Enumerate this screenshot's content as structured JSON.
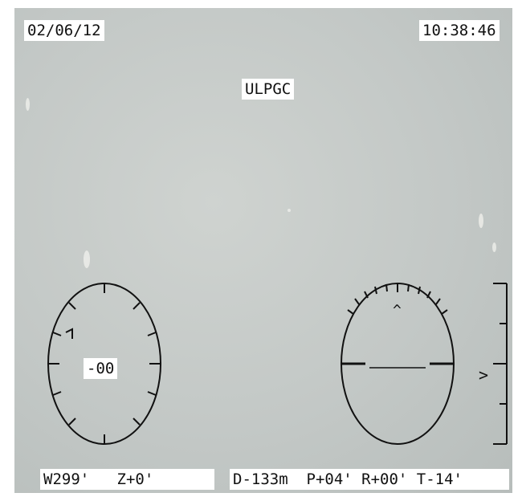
{
  "overlay": {
    "date": "02/06/12",
    "time": "10:38:46",
    "station": "ULPGC",
    "compass_readout": "-00",
    "pitch_marker": "^",
    "depth_marker": ">",
    "heading_line": "W299'   Z+0'",
    "telemetry_line": "D-133m  P+04' R+00' T-14'"
  },
  "colors": {
    "background": "#c3c8c6",
    "label_bg": "#ffffff",
    "ink": "#111111"
  }
}
